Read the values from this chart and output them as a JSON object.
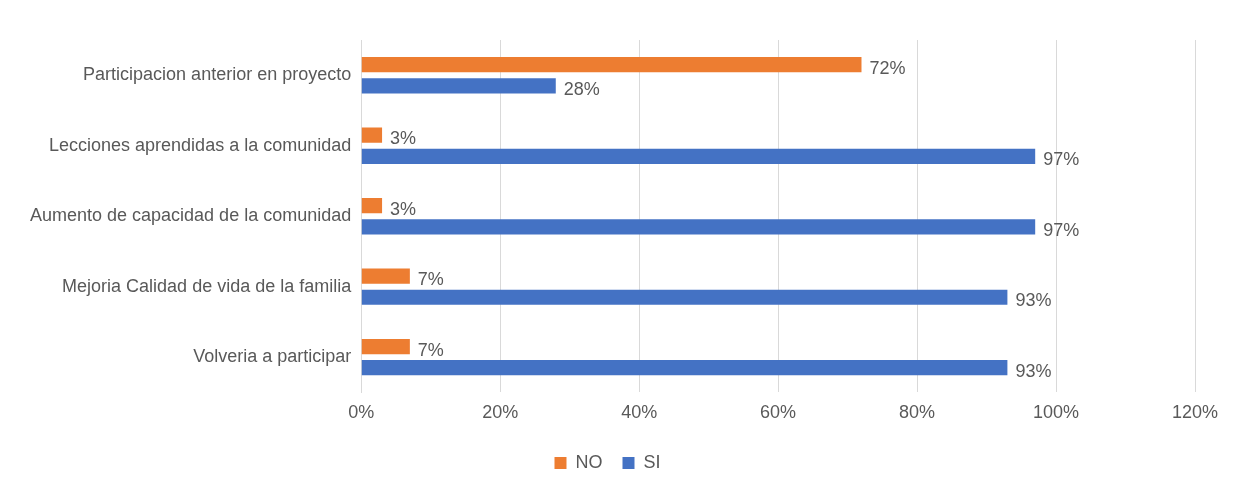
{
  "chart_data": {
    "type": "bar",
    "orientation": "horizontal",
    "categories": [
      "Participacion anterior en proyecto",
      "Lecciones aprendidas a la comunidad",
      "Aumento de capacidad de la comunidad",
      "Mejoria Calidad de vida de la familia",
      "Volveria a participar"
    ],
    "series": [
      {
        "name": "NO",
        "color": "#ed7d31",
        "values": [
          72,
          3,
          3,
          7,
          7
        ],
        "value_labels": [
          "72%",
          "3%",
          "3%",
          "7%",
          "7%"
        ]
      },
      {
        "name": "SI",
        "color": "#4472c4",
        "values": [
          28,
          97,
          97,
          93,
          93
        ],
        "value_labels": [
          "28%",
          "97%",
          "97%",
          "93%",
          "93%"
        ]
      }
    ],
    "xlim": [
      0,
      120
    ],
    "xticks": [
      {
        "value": 0,
        "label": "0%"
      },
      {
        "value": 20,
        "label": "20%"
      },
      {
        "value": 40,
        "label": "40%"
      },
      {
        "value": 60,
        "label": "60%"
      },
      {
        "value": 80,
        "label": "80%"
      },
      {
        "value": 100,
        "label": "100%"
      },
      {
        "value": 120,
        "label": "120%"
      }
    ],
    "grid": "x",
    "legend": "bottom"
  }
}
